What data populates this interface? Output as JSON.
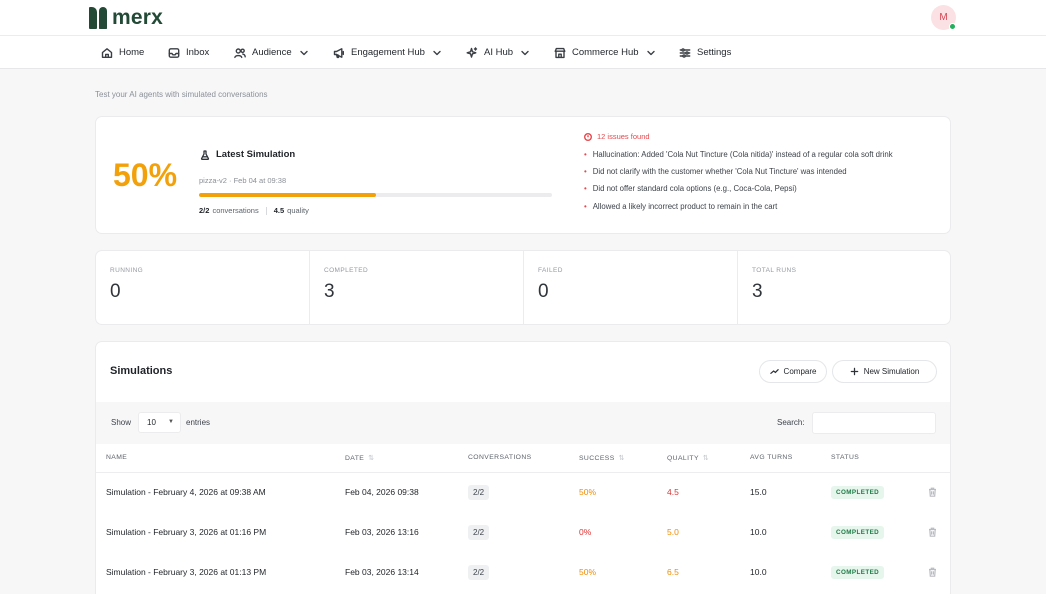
{
  "brand": {
    "name": "merx"
  },
  "user": {
    "initial": "M",
    "online": true
  },
  "nav": [
    {
      "label": "Home",
      "icon": "home-icon",
      "dropdown": false
    },
    {
      "label": "Inbox",
      "icon": "inbox-icon",
      "dropdown": false
    },
    {
      "label": "Audience",
      "icon": "users-icon",
      "dropdown": true
    },
    {
      "label": "Engagement Hub",
      "icon": "megaphone-icon",
      "dropdown": true
    },
    {
      "label": "AI Hub",
      "icon": "sparkles-icon",
      "dropdown": true
    },
    {
      "label": "Commerce Hub",
      "icon": "store-icon",
      "dropdown": true
    },
    {
      "label": "Settings",
      "icon": "sliders-icon",
      "dropdown": false
    }
  ],
  "page": {
    "subtitle": "Test your AI agents with simulated conversations"
  },
  "latest": {
    "percent": "50%",
    "title": "Latest Simulation",
    "meta": "pizza-v2 · Feb 04 at 09:38",
    "progress_percent": 50,
    "conversations_value": "2/2",
    "conversations_label": "conversations",
    "quality_value": "4.5",
    "quality_label": "quality"
  },
  "issues": {
    "heading": "12 issues found",
    "items": [
      "Hallucination: Added 'Cola Nut Tincture (Cola nitida)' instead of a regular cola soft drink",
      "Did not clarify with the customer whether 'Cola Nut Tincture' was intended",
      "Did not offer standard cola options (e.g., Coca-Cola, Pepsi)",
      "Allowed a likely incorrect product to remain in the cart"
    ]
  },
  "stats": [
    {
      "label": "RUNNING",
      "value": "0"
    },
    {
      "label": "COMPLETED",
      "value": "3"
    },
    {
      "label": "FAILED",
      "value": "0"
    },
    {
      "label": "TOTAL RUNS",
      "value": "3"
    }
  ],
  "simulations": {
    "title": "Simulations",
    "compare_label": "Compare",
    "new_label": "New Simulation",
    "show_label": "Show",
    "entries_value": "10",
    "entries_label": "entries",
    "search_label": "Search:",
    "search_value": "",
    "columns": [
      "NAME",
      "DATE",
      "CONVERSATIONS",
      "SUCCESS",
      "QUALITY",
      "AVG TURNS",
      "STATUS"
    ],
    "rows": [
      {
        "name": "Simulation - February 4, 2026 at 09:38 AM",
        "date": "Feb 04, 2026 09:38",
        "conversations": "2/2",
        "success": "50%",
        "success_color": "#f08c00",
        "quality": "4.5",
        "quality_color": "#e03131",
        "avg_turns": "15.0",
        "status": "COMPLETED"
      },
      {
        "name": "Simulation - February 3, 2026 at 01:16 PM",
        "date": "Feb 03, 2026 13:16",
        "conversations": "2/2",
        "success": "0%",
        "success_color": "#e03131",
        "quality": "5.0",
        "quality_color": "#f08c00",
        "avg_turns": "10.0",
        "status": "COMPLETED"
      },
      {
        "name": "Simulation - February 3, 2026 at 01:13 PM",
        "date": "Feb 03, 2026 13:14",
        "conversations": "2/2",
        "success": "50%",
        "success_color": "#f08c00",
        "quality": "6.5",
        "quality_color": "#f08c00",
        "avg_turns": "10.0",
        "status": "COMPLETED"
      }
    ]
  },
  "colors": {
    "accent": "#f2a10a",
    "brand": "#234a36",
    "danger": "#e5484d",
    "success_badge": "#1d7a45"
  }
}
